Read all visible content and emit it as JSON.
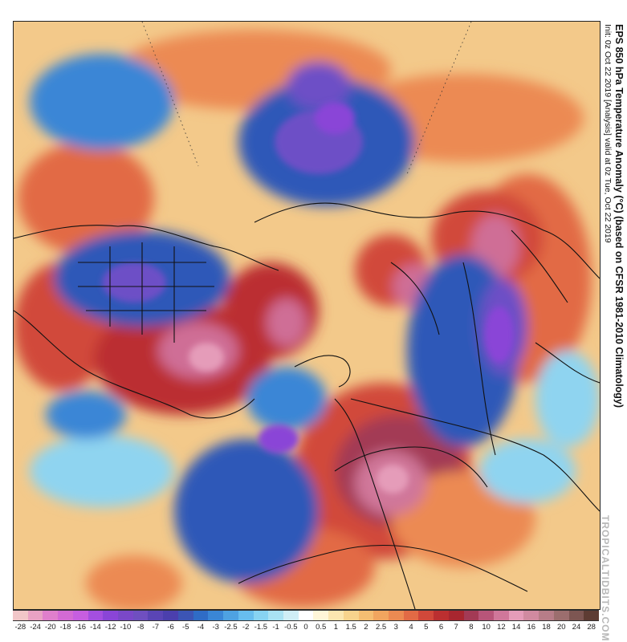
{
  "title": {
    "main": "EPS 850 hPa Temperature Anomaly (°C) (based on CFSR 1981-2010 Climatology)",
    "sub": "Init: 0z Oct 22 2019   [Analysis]   valid at 0z Tue, Oct 22 2019"
  },
  "watermark": "TROPICALTIDBITS.COM",
  "colorbar": {
    "labels": [
      "-28",
      "-24",
      "-20",
      "-18",
      "-16",
      "-14",
      "-12",
      "-10",
      "-8",
      "-7",
      "-6",
      "-5",
      "-4",
      "-3",
      "-2.5",
      "-2",
      "-1.5",
      "-1",
      "-0.5",
      "0",
      "0.5",
      "1",
      "1.5",
      "2",
      "2.5",
      "3",
      "4",
      "5",
      "6",
      "7",
      "8",
      "10",
      "12",
      "14",
      "16",
      "18",
      "20",
      "24",
      "28"
    ],
    "colors": [
      "#f1c6c8",
      "#e9a2c4",
      "#e07fcc",
      "#d36ad4",
      "#c65ee0",
      "#a44fdf",
      "#8a45d7",
      "#7a48c8",
      "#6f4fc0",
      "#5a45b5",
      "#4b3fad",
      "#3c55b5",
      "#2f6cc6",
      "#3a86d6",
      "#4ea2e2",
      "#67bdee",
      "#87d3f2",
      "#a9e2f3",
      "#cfeef6",
      "#ffffff",
      "#fff6d8",
      "#fbe6b0",
      "#f7d38c",
      "#f5be72",
      "#f1a55f",
      "#ec8a52",
      "#e26a45",
      "#d1483a",
      "#bb2f30",
      "#a8262f",
      "#a33a55",
      "#b85579",
      "#d0779a",
      "#e59cb9",
      "#d08aa0",
      "#b77d88",
      "#9c6e6e",
      "#7d5652",
      "#5e3c33"
    ]
  },
  "map": {
    "region": "Northern Hemisphere (polar stereographic)",
    "palette": {
      "warm_base": "#f3c98a",
      "warm_orange": "#ee9a55",
      "warm_red": "#d6493a",
      "warm_deep": "#b32b30",
      "warm_pink": "#cf6e96",
      "cool_light": "#8fd4f0",
      "cool_mid": "#3a86d6",
      "cool_deep": "#2f58b8",
      "cool_purple": "#6d4fc6",
      "coast": "#111111"
    }
  }
}
